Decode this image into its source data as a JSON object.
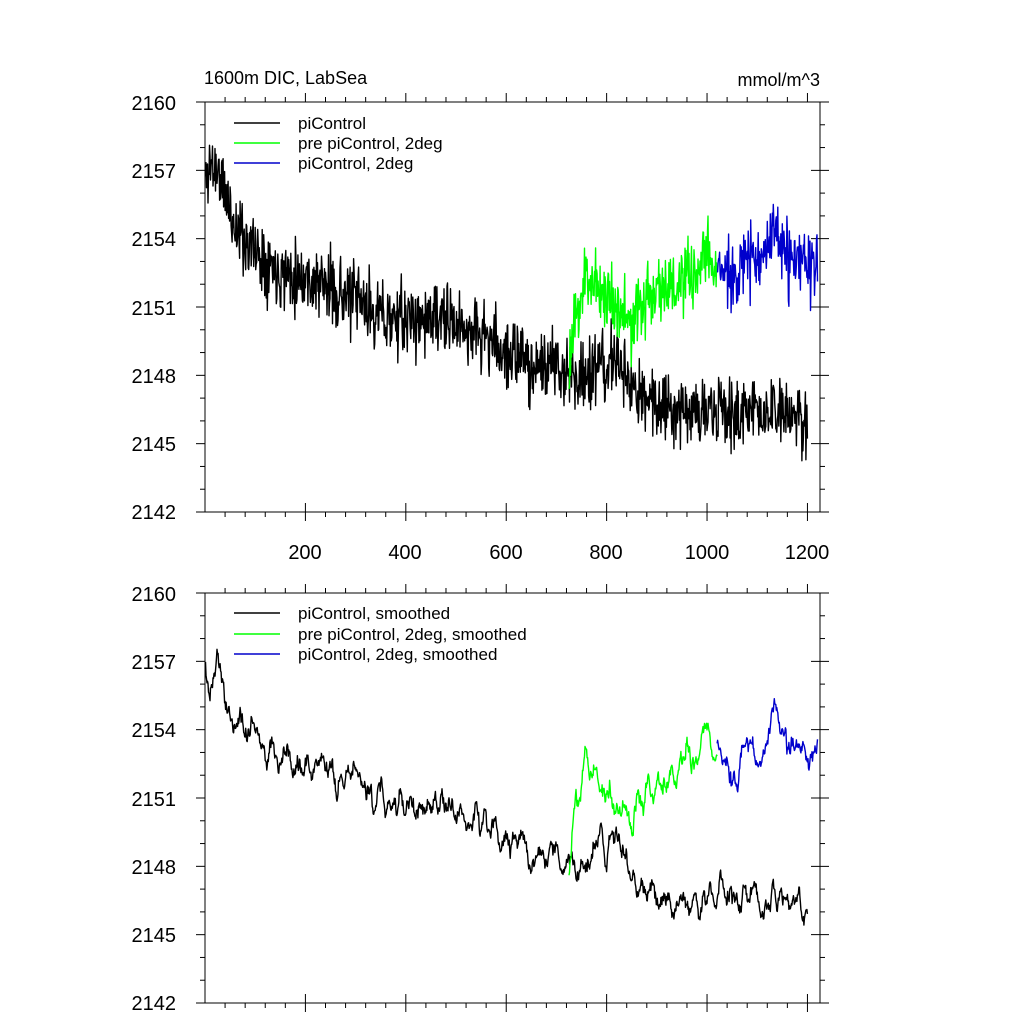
{
  "chart_data": [
    {
      "type": "line",
      "title": "1600m DIC, LabSea",
      "units": "mmol/m^3",
      "xlabel": "",
      "ylabel": "",
      "xlim": [
        0,
        1225
      ],
      "ylim": [
        2142,
        2160
      ],
      "xticks": [
        200,
        400,
        600,
        800,
        1000,
        1200
      ],
      "yticks": [
        2142,
        2145,
        2148,
        2151,
        2154,
        2157,
        2160
      ],
      "show_xtick_labels": true,
      "legend_position": "top-left",
      "series": [
        {
          "name": "piControl",
          "color": "#000000",
          "x_range": [
            1,
            1200
          ],
          "anchors": [
            [
              1,
              2156.5
            ],
            [
              10,
              2157.3
            ],
            [
              25,
              2157.0
            ],
            [
              40,
              2156.0
            ],
            [
              60,
              2154.5
            ],
            [
              100,
              2153.5
            ],
            [
              150,
              2152.6
            ],
            [
              200,
              2152.3
            ],
            [
              250,
              2151.8
            ],
            [
              300,
              2151.3
            ],
            [
              350,
              2150.6
            ],
            [
              400,
              2150.4
            ],
            [
              450,
              2150.5
            ],
            [
              500,
              2150.2
            ],
            [
              550,
              2149.8
            ],
            [
              600,
              2149.0
            ],
            [
              650,
              2148.5
            ],
            [
              700,
              2148.3
            ],
            [
              750,
              2148.0
            ],
            [
              800,
              2148.3
            ],
            [
              820,
              2148.8
            ],
            [
              850,
              2147.3
            ],
            [
              900,
              2146.8
            ],
            [
              950,
              2146.6
            ],
            [
              1000,
              2146.3
            ],
            [
              1050,
              2146.3
            ],
            [
              1100,
              2146.5
            ],
            [
              1150,
              2146.2
            ],
            [
              1200,
              2146.0
            ]
          ],
          "noise": 1.3,
          "smooth": false,
          "seed": 11
        },
        {
          "name": "pre piControl, 2deg",
          "color": "#00ff00",
          "x_range": [
            725,
            1020
          ],
          "anchors": [
            [
              725,
              2148.5
            ],
            [
              740,
              2150.5
            ],
            [
              760,
              2152.5
            ],
            [
              780,
              2152.0
            ],
            [
              800,
              2151.5
            ],
            [
              830,
              2151.0
            ],
            [
              850,
              2150.0
            ],
            [
              880,
              2151.5
            ],
            [
              910,
              2152.0
            ],
            [
              940,
              2151.8
            ],
            [
              970,
              2152.3
            ],
            [
              1000,
              2153.2
            ],
            [
              1020,
              2152.8
            ]
          ],
          "noise": 1.3,
          "smooth": false,
          "seed": 23
        },
        {
          "name": "piControl, 2deg",
          "color": "#0000cc",
          "x_range": [
            1020,
            1220
          ],
          "anchors": [
            [
              1020,
              2152.5
            ],
            [
              1050,
              2152.6
            ],
            [
              1080,
              2153.0
            ],
            [
              1110,
              2153.5
            ],
            [
              1140,
              2154.0
            ],
            [
              1170,
              2152.8
            ],
            [
              1200,
              2153.0
            ],
            [
              1220,
              2152.5
            ]
          ],
          "noise": 1.3,
          "smooth": false,
          "seed": 37
        }
      ]
    },
    {
      "type": "line",
      "title": "",
      "units": "",
      "xlabel": "",
      "ylabel": "",
      "xlim": [
        0,
        1225
      ],
      "ylim": [
        2142,
        2160
      ],
      "xticks": [
        200,
        400,
        600,
        800,
        1000,
        1200
      ],
      "yticks": [
        2142,
        2145,
        2148,
        2151,
        2154,
        2157,
        2160
      ],
      "show_xtick_labels": false,
      "legend_position": "top-left",
      "series": [
        {
          "name": "piControl, smoothed",
          "color": "#000000",
          "x_range": [
            1,
            1200
          ],
          "anchors": [
            [
              1,
              2156.5
            ],
            [
              10,
              2155.5
            ],
            [
              25,
              2157.5
            ],
            [
              40,
              2155.0
            ],
            [
              60,
              2154.5
            ],
            [
              100,
              2154.0
            ],
            [
              150,
              2153.2
            ],
            [
              200,
              2152.6
            ],
            [
              250,
              2152.2
            ],
            [
              300,
              2151.6
            ],
            [
              350,
              2151.0
            ],
            [
              400,
              2150.5
            ],
            [
              450,
              2150.7
            ],
            [
              500,
              2150.3
            ],
            [
              550,
              2150.0
            ],
            [
              600,
              2149.2
            ],
            [
              650,
              2148.6
            ],
            [
              700,
              2148.3
            ],
            [
              750,
              2148.2
            ],
            [
              800,
              2148.8
            ],
            [
              820,
              2149.5
            ],
            [
              850,
              2147.2
            ],
            [
              900,
              2146.8
            ],
            [
              950,
              2146.6
            ],
            [
              1000,
              2146.4
            ],
            [
              1050,
              2146.8
            ],
            [
              1100,
              2146.6
            ],
            [
              1150,
              2146.3
            ],
            [
              1200,
              2146.2
            ]
          ],
          "noise": 1.3,
          "smooth": true,
          "seed": 11
        },
        {
          "name": "pre piControl, 2deg, smoothed",
          "color": "#00ff00",
          "x_range": [
            725,
            1020
          ],
          "anchors": [
            [
              725,
              2148.0
            ],
            [
              740,
              2150.5
            ],
            [
              760,
              2153.0
            ],
            [
              780,
              2152.0
            ],
            [
              800,
              2151.2
            ],
            [
              830,
              2150.8
            ],
            [
              850,
              2149.6
            ],
            [
              880,
              2151.5
            ],
            [
              910,
              2151.8
            ],
            [
              940,
              2152.0
            ],
            [
              970,
              2152.6
            ],
            [
              1000,
              2153.6
            ],
            [
              1020,
              2153.2
            ]
          ],
          "noise": 1.3,
          "smooth": true,
          "seed": 23
        },
        {
          "name": "piControl, 2deg, smoothed",
          "color": "#0000cc",
          "x_range": [
            1020,
            1220
          ],
          "anchors": [
            [
              1020,
              2152.8
            ],
            [
              1050,
              2152.3
            ],
            [
              1080,
              2153.0
            ],
            [
              1110,
              2153.2
            ],
            [
              1140,
              2154.3
            ],
            [
              1170,
              2152.8
            ],
            [
              1200,
              2152.8
            ],
            [
              1220,
              2152.6
            ]
          ],
          "noise": 1.3,
          "smooth": true,
          "seed": 37
        }
      ]
    }
  ]
}
